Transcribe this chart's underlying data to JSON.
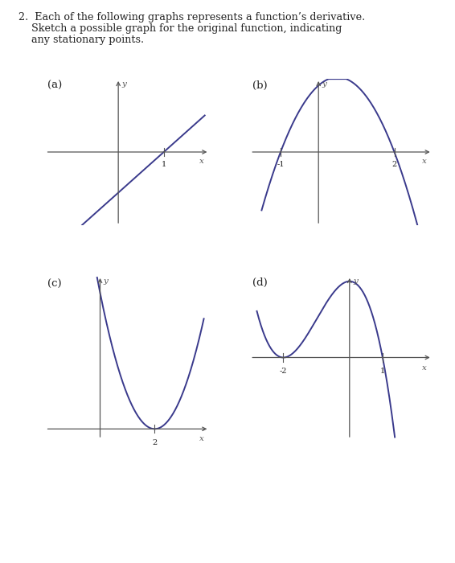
{
  "title_line1": "2.  Each of the following graphs represents a function’s derivative.",
  "title_line2": "    Sketch a possible graph for the original function, indicating",
  "title_line3": "    any stationary points.",
  "label_a": "(a)",
  "label_b": "(b)",
  "label_c": "(c)",
  "label_d": "(d)",
  "curve_color": "#3a3a8c",
  "axis_color": "#555555",
  "text_color": "#222222",
  "background_color": "#ffffff",
  "graph_a": {
    "xlim": [
      -1.6,
      2.0
    ],
    "ylim": [
      -1.8,
      1.8
    ],
    "tick_x": 1,
    "tick_label_x": "1",
    "xrange": [
      -1.5,
      1.9
    ],
    "slope": 1.0,
    "intercept": -1.0
  },
  "graph_b": {
    "xlim": [
      -1.8,
      3.0
    ],
    "ylim": [
      -2.2,
      2.2
    ],
    "tick_x1": -1,
    "tick_label_x1": "-1",
    "tick_x2": 2,
    "tick_label_x2": "2",
    "root1": -1,
    "root2": 2,
    "xrange": [
      -1.5,
      2.8
    ]
  },
  "graph_c": {
    "xlim": [
      -2.0,
      4.0
    ],
    "ylim": [
      -0.3,
      4.5
    ],
    "tick_x": 2,
    "tick_label_x": "2",
    "root": 2,
    "xrange": [
      -1.2,
      3.8
    ]
  },
  "graph_d": {
    "xlim": [
      -3.0,
      2.5
    ],
    "ylim": [
      -1.5,
      1.5
    ],
    "tick_x1": -2,
    "tick_label_x1": "-2",
    "tick_x2": 1,
    "tick_label_x2": "1",
    "root1": -2,
    "root2": 1,
    "xrange": [
      -2.8,
      2.2
    ]
  }
}
